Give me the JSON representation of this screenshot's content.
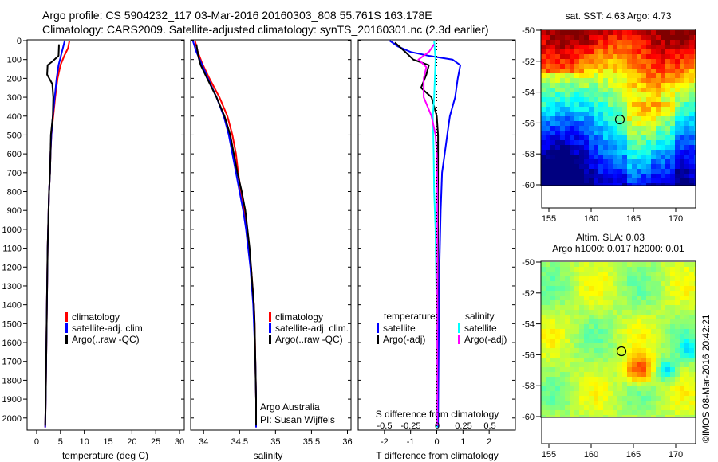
{
  "header": {
    "line1": "Argo profile: CS 5904232_117 03-Mar-2016 20160303_808 55.761S 163.178E",
    "line2": "Climatology: CARS2009. Satellite-adjusted climatology: synTS_20160301.nc (2.3d earlier)"
  },
  "colors": {
    "climatology": "#ff0000",
    "satellite": "#0000ff",
    "argo": "#000000",
    "sal_sat": "#00ffff",
    "sal_argo": "#ff00ff"
  },
  "yaxis": {
    "ticks": [
      0,
      100,
      200,
      300,
      400,
      500,
      600,
      700,
      800,
      900,
      1000,
      1100,
      1200,
      1300,
      1400,
      1500,
      1600,
      1700,
      1800,
      1900,
      2000
    ],
    "range": [
      0,
      2060
    ]
  },
  "temp_panel": {
    "xlabel": "temperature (deg C)",
    "xticks": [
      0,
      5,
      10,
      15,
      20,
      25,
      30
    ],
    "xlim": [
      -2,
      31
    ],
    "legend": [
      "climatology",
      "satellite-adj. clim.",
      "Argo(..raw -QC)"
    ]
  },
  "sal_panel": {
    "xlabel": "salinity",
    "xticks": [
      34,
      34.5,
      35,
      35.5,
      36
    ],
    "xtick_labels": [
      "34",
      "34.5",
      "35",
      "35.5",
      "36"
    ],
    "xlim": [
      33.82,
      36.05
    ],
    "legend": [
      "climatology",
      "satellite-adj. clim.",
      "Argo(..raw -QC)"
    ],
    "note1": "Argo Australia",
    "note2": "PI: Susan Wijffels"
  },
  "diff_panel": {
    "xlabel": "T difference from climatology",
    "xlabel2": "S difference from climatology",
    "xticks": [
      -2,
      -1,
      0,
      1,
      2
    ],
    "xtick_labels": [
      "-2",
      "-1",
      "0",
      "1",
      "2"
    ],
    "xlim": [
      -3,
      3
    ],
    "xticks2": [
      "-0.5",
      "-0.25",
      "0",
      "0.25",
      "0.5"
    ],
    "legend_temp_title": "temperature",
    "legend_sal_title": "salinity",
    "legend_temp": [
      "satellite",
      "Argo(-adj)"
    ],
    "legend_sal": [
      "satellite",
      "Argo(-adj)"
    ]
  },
  "map_sst": {
    "title": "sat. SST: 4.63  Argo: 4.73",
    "lat_ticks": [
      "-50",
      "-52",
      "-54",
      "-56",
      "-58",
      "-60"
    ],
    "lon_ticks": [
      "155",
      "160",
      "165",
      "170"
    ]
  },
  "map_sla": {
    "title1": "Altim. SLA: 0.03",
    "title2": "Argo h1000: 0.017 h2000: 0.01",
    "lat_ticks": [
      "-50",
      "-52",
      "-54",
      "-56",
      "-58",
      "-60"
    ],
    "lon_ticks": [
      "155",
      "160",
      "165",
      "170"
    ]
  },
  "credit": "©IMOS 08-Mar-2016 20:42:21",
  "chart_data": [
    {
      "type": "line",
      "xlabel": "temperature (deg C)",
      "ylim": [
        0,
        2060
      ],
      "xlim": [
        -2,
        31
      ],
      "series": [
        {
          "name": "climatology",
          "color": "#ff0000",
          "points": [
            [
              6.9,
              0
            ],
            [
              6.6,
              40
            ],
            [
              5.8,
              80
            ],
            [
              5.0,
              130
            ],
            [
              4.4,
              200
            ],
            [
              3.9,
              300
            ],
            [
              3.5,
              400
            ],
            [
              3.1,
              500
            ],
            [
              2.9,
              600
            ],
            [
              2.8,
              700
            ],
            [
              2.6,
              800
            ],
            [
              2.5,
              900
            ],
            [
              2.4,
              1000
            ],
            [
              2.3,
              1100
            ],
            [
              2.2,
              1300
            ],
            [
              2.1,
              1500
            ],
            [
              2.0,
              1700
            ],
            [
              1.9,
              1900
            ],
            [
              1.8,
              2050
            ]
          ]
        },
        {
          "name": "satellite-adj. clim.",
          "color": "#0000ff",
          "points": [
            [
              5.9,
              0
            ],
            [
              5.5,
              40
            ],
            [
              5.1,
              80
            ],
            [
              4.6,
              130
            ],
            [
              4.2,
              200
            ],
            [
              3.8,
              300
            ],
            [
              3.4,
              400
            ],
            [
              3.1,
              500
            ],
            [
              2.9,
              600
            ],
            [
              2.8,
              700
            ],
            [
              2.6,
              800
            ],
            [
              2.5,
              900
            ],
            [
              2.4,
              1000
            ],
            [
              2.3,
              1100
            ],
            [
              2.2,
              1300
            ],
            [
              2.1,
              1500
            ],
            [
              2.0,
              1700
            ],
            [
              1.9,
              1900
            ],
            [
              1.8,
              2050
            ]
          ]
        },
        {
          "name": "Argo(..raw -QC)",
          "color": "#000000",
          "points": [
            [
              4.7,
              20
            ],
            [
              4.6,
              80
            ],
            [
              3.3,
              110
            ],
            [
              2.3,
              130
            ],
            [
              2.2,
              180
            ],
            [
              3.3,
              230
            ],
            [
              3.5,
              300
            ],
            [
              3.4,
              400
            ],
            [
              3.0,
              500
            ],
            [
              2.9,
              600
            ],
            [
              2.8,
              700
            ],
            [
              2.6,
              800
            ],
            [
              2.5,
              900
            ],
            [
              2.4,
              1000
            ],
            [
              2.3,
              1100
            ],
            [
              2.2,
              1300
            ],
            [
              2.1,
              1500
            ],
            [
              2.0,
              1700
            ],
            [
              1.9,
              1900
            ],
            [
              1.8,
              2040
            ]
          ]
        }
      ]
    },
    {
      "type": "line",
      "xlabel": "salinity",
      "ylim": [
        0,
        2060
      ],
      "xlim": [
        33.82,
        36.05
      ],
      "series": [
        {
          "name": "climatology",
          "color": "#ff0000",
          "points": [
            [
              33.88,
              0
            ],
            [
              33.92,
              60
            ],
            [
              33.98,
              120
            ],
            [
              34.08,
              200
            ],
            [
              34.22,
              300
            ],
            [
              34.33,
              400
            ],
            [
              34.4,
              500
            ],
            [
              34.45,
              600
            ],
            [
              34.48,
              700
            ],
            [
              34.52,
              800
            ],
            [
              34.56,
              900
            ],
            [
              34.6,
              1000
            ],
            [
              34.63,
              1100
            ],
            [
              34.66,
              1200
            ],
            [
              34.68,
              1300
            ],
            [
              34.7,
              1400
            ],
            [
              34.71,
              1500
            ],
            [
              34.72,
              1700
            ],
            [
              34.73,
              1900
            ],
            [
              34.73,
              2050
            ]
          ]
        },
        {
          "name": "satellite-adj. clim.",
          "color": "#0000ff",
          "points": [
            [
              33.85,
              0
            ],
            [
              33.9,
              60
            ],
            [
              33.97,
              120
            ],
            [
              34.06,
              200
            ],
            [
              34.18,
              300
            ],
            [
              34.28,
              400
            ],
            [
              34.35,
              500
            ],
            [
              34.4,
              600
            ],
            [
              34.45,
              700
            ],
            [
              34.5,
              800
            ],
            [
              34.55,
              900
            ],
            [
              34.59,
              1000
            ],
            [
              34.62,
              1100
            ],
            [
              34.65,
              1200
            ],
            [
              34.67,
              1300
            ],
            [
              34.69,
              1400
            ],
            [
              34.7,
              1500
            ],
            [
              34.72,
              1700
            ],
            [
              34.73,
              1900
            ],
            [
              34.73,
              2050
            ]
          ]
        },
        {
          "name": "Argo(..raw -QC)",
          "color": "#000000",
          "points": [
            [
              33.9,
              20
            ],
            [
              33.93,
              90
            ],
            [
              33.96,
              130
            ],
            [
              34.05,
              200
            ],
            [
              34.18,
              300
            ],
            [
              34.29,
              400
            ],
            [
              34.37,
              500
            ],
            [
              34.42,
              600
            ],
            [
              34.47,
              700
            ],
            [
              34.53,
              800
            ],
            [
              34.58,
              900
            ],
            [
              34.61,
              1000
            ],
            [
              34.64,
              1100
            ],
            [
              34.66,
              1200
            ],
            [
              34.68,
              1300
            ],
            [
              34.7,
              1400
            ],
            [
              34.71,
              1500
            ],
            [
              34.72,
              1700
            ],
            [
              34.73,
              1900
            ],
            [
              34.73,
              2040
            ]
          ]
        }
      ]
    },
    {
      "type": "line",
      "xlabel": "T difference from climatology",
      "xlabel2": "S difference from climatology",
      "ylim": [
        0,
        2060
      ],
      "xlim": [
        -3,
        3
      ],
      "series": [
        {
          "name": "temperature satellite",
          "color": "#0000ff",
          "points": [
            [
              -1.8,
              0
            ],
            [
              -1.5,
              30
            ],
            [
              -1.0,
              60
            ],
            [
              -0.3,
              80
            ],
            [
              0.6,
              100
            ],
            [
              0.9,
              130
            ],
            [
              0.8,
              200
            ],
            [
              0.7,
              300
            ],
            [
              0.5,
              400
            ],
            [
              0.4,
              500
            ],
            [
              0.3,
              600
            ],
            [
              0.2,
              700
            ],
            [
              0.15,
              900
            ],
            [
              0.1,
              1200
            ],
            [
              0.08,
              1500
            ],
            [
              0.05,
              2050
            ]
          ]
        },
        {
          "name": "temperature Argo(-adj)",
          "color": "#000000",
          "points": [
            [
              -1.6,
              10
            ],
            [
              -1.2,
              60
            ],
            [
              -0.9,
              100
            ],
            [
              -0.3,
              130
            ],
            [
              -0.4,
              180
            ],
            [
              -0.6,
              250
            ],
            [
              -0.2,
              300
            ],
            [
              0.0,
              400
            ],
            [
              0.05,
              500
            ],
            [
              0.05,
              1000
            ],
            [
              0.0,
              1800
            ],
            [
              0.0,
              2040
            ]
          ]
        },
        {
          "name": "salinity satellite",
          "color": "#00ffff",
          "points": [
            [
              -0.1,
              0
            ],
            [
              -0.05,
              100
            ],
            [
              -0.1,
              300
            ],
            [
              -0.15,
              400
            ],
            [
              -0.12,
              600
            ],
            [
              -0.1,
              800
            ],
            [
              -0.05,
              1000
            ],
            [
              0.0,
              1500
            ],
            [
              0.0,
              2050
            ]
          ]
        },
        {
          "name": "salinity Argo(-adj)",
          "color": "#ff00ff",
          "points": [
            [
              -0.1,
              20
            ],
            [
              -0.3,
              60
            ],
            [
              -0.7,
              100
            ],
            [
              -0.4,
              140
            ],
            [
              -0.5,
              200
            ],
            [
              -0.5,
              300
            ],
            [
              -0.2,
              400
            ],
            [
              -0.05,
              500
            ],
            [
              0.0,
              600
            ],
            [
              0.02,
              800
            ],
            [
              0.02,
              1200
            ],
            [
              0.02,
              2040
            ]
          ]
        }
      ]
    }
  ]
}
